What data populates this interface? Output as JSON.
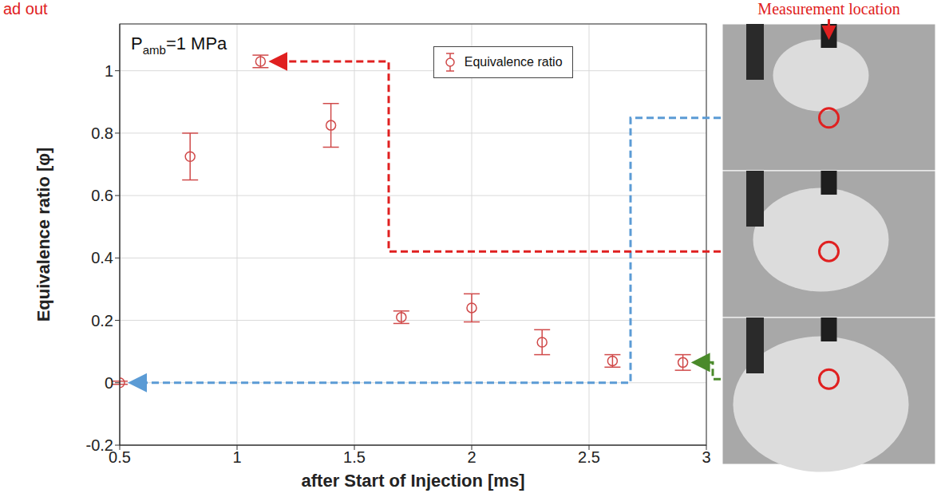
{
  "chart_data": {
    "type": "scatter",
    "corner_text": "ad out",
    "annotation": {
      "base": "P",
      "subscript": "amb",
      "text": "=1 MPa"
    },
    "photo_label": "Measurement location",
    "x_label": "after Start of Injection [ms]",
    "y_label": "Equivalence ratio [φ]",
    "x": [
      0.5,
      0.8,
      1.1,
      1.4,
      1.7,
      2.0,
      2.3,
      2.6,
      2.9
    ],
    "series": [
      {
        "name": "Equivalence ratio",
        "color": "#d04a4a",
        "marker": "open_circle",
        "values": [
          0.0,
          0.725,
          1.03,
          0.825,
          0.21,
          0.24,
          0.13,
          0.07,
          0.065
        ],
        "errors": [
          0.005,
          0.075,
          0.02,
          0.07,
          0.02,
          0.045,
          0.04,
          0.02,
          0.025
        ]
      }
    ],
    "xlim": [
      0.5,
      3
    ],
    "xticks": [
      0.5,
      1,
      1.5,
      2,
      2.5,
      3
    ],
    "ylim": [
      -0.2,
      1.15
    ],
    "yticks": [
      -0.2,
      0,
      0.2,
      0.4,
      0.6,
      0.8,
      1
    ],
    "grid": true,
    "legend": "top"
  }
}
